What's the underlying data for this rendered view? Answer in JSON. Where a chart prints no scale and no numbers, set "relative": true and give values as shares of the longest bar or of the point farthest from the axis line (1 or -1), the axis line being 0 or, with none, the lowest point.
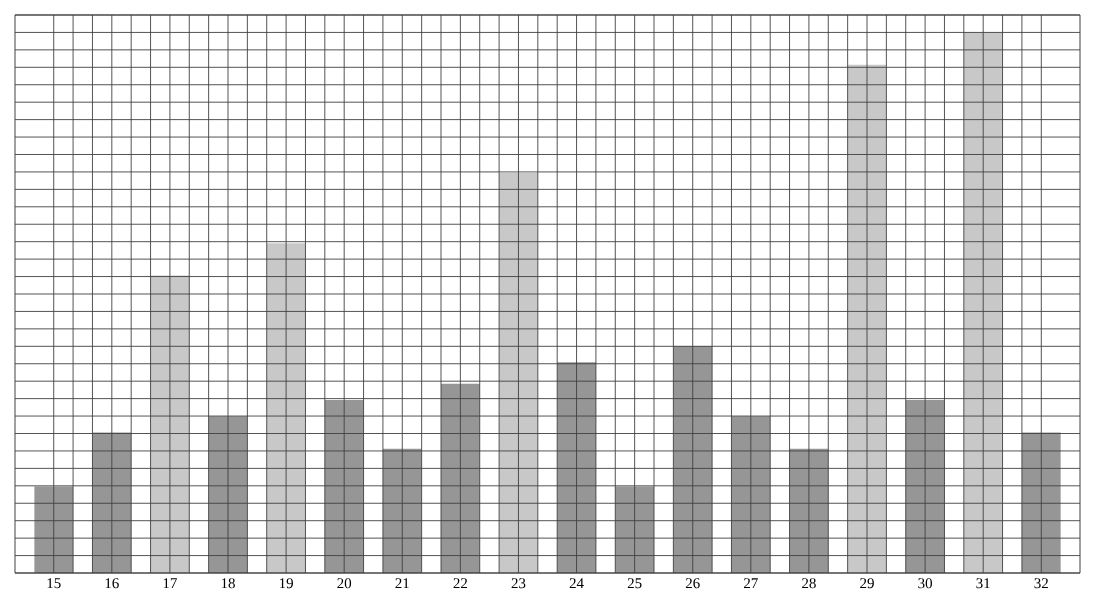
{
  "chart_data": {
    "type": "bar",
    "relative": true,
    "grid": true,
    "categories": [
      "15",
      "16",
      "17",
      "18",
      "19",
      "20",
      "21",
      "22",
      "23",
      "24",
      "25",
      "26",
      "27",
      "28",
      "29",
      "30",
      "31",
      "32"
    ],
    "values": [
      0.16,
      0.26,
      0.55,
      0.29,
      0.61,
      0.32,
      0.23,
      0.35,
      0.74,
      0.39,
      0.16,
      0.42,
      0.29,
      0.23,
      0.94,
      0.32,
      1.0,
      0.26
    ],
    "colors": [
      "#969696",
      "#969696",
      "#c8c8c8",
      "#969696",
      "#c8c8c8",
      "#969696",
      "#969696",
      "#969696",
      "#c8c8c8",
      "#969696",
      "#969696",
      "#969696",
      "#969696",
      "#969696",
      "#c8c8c8",
      "#969696",
      "#c8c8c8",
      "#969696"
    ]
  }
}
